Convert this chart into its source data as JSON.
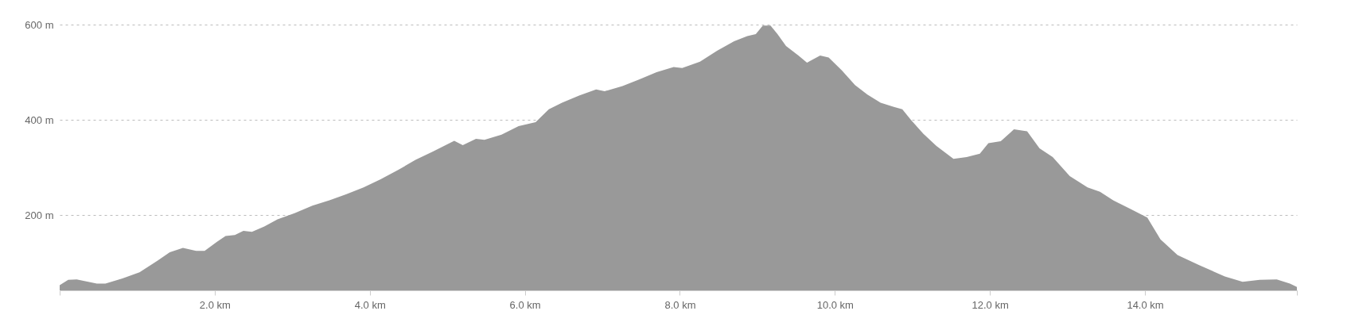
{
  "chart_data": {
    "type": "area",
    "relative": false,
    "x": [
      0,
      0.11,
      0.22,
      0.48,
      0.59,
      0.81,
      1.03,
      1.26,
      1.42,
      1.59,
      1.76,
      1.87,
      2.03,
      2.14,
      2.26,
      2.37,
      2.48,
      2.64,
      2.81,
      3.03,
      3.26,
      3.48,
      3.7,
      3.92,
      4.14,
      4.37,
      4.59,
      4.81,
      5.09,
      5.2,
      5.37,
      5.48,
      5.7,
      5.92,
      6.14,
      6.31,
      6.48,
      6.7,
      6.92,
      7.03,
      7.26,
      7.48,
      7.7,
      7.92,
      8.03,
      8.26,
      8.48,
      8.7,
      8.87,
      8.98,
      9.07,
      9.17,
      9.26,
      9.37,
      9.53,
      9.64,
      9.81,
      9.92,
      10.09,
      10.26,
      10.42,
      10.59,
      10.76,
      10.87,
      10.98,
      11.14,
      11.31,
      11.53,
      11.7,
      11.87,
      11.98,
      12.14,
      12.31,
      12.48,
      12.64,
      12.81,
      13.03,
      13.26,
      13.42,
      13.59,
      13.81,
      14.03,
      14.2,
      14.42,
      14.7,
      15.03,
      15.26,
      15.48,
      15.7,
      15.87,
      15.96
    ],
    "series": [
      {
        "color": "#999999",
        "values": [
          53,
          64,
          65,
          56,
          56,
          67,
          80,
          104,
          122,
          131,
          125,
          125,
          144,
          156,
          158,
          167,
          165,
          176,
          191,
          204,
          220,
          231,
          244,
          258,
          275,
          295,
          316,
          333,
          356,
          347,
          360,
          358,
          369,
          387,
          395,
          422,
          436,
          451,
          464,
          460,
          471,
          485,
          500,
          511,
          509,
          522,
          545,
          565,
          576,
          580,
          598,
          598,
          580,
          555,
          535,
          520,
          535,
          531,
          504,
          473,
          453,
          436,
          427,
          422,
          400,
          371,
          345,
          318,
          322,
          329,
          351,
          355,
          380,
          376,
          340,
          322,
          282,
          258,
          249,
          231,
          213,
          195,
          149,
          116,
          95,
          71,
          60,
          64,
          65,
          56,
          49
        ]
      }
    ],
    "xlim": [
      0,
      15.96
    ],
    "ylim": [
      42,
      600
    ],
    "xticks": [
      {
        "value": 0,
        "label": null
      },
      {
        "value": 2,
        "label": "2.0 km"
      },
      {
        "value": 4,
        "label": "4.0 km"
      },
      {
        "value": 6,
        "label": "6.0 km"
      },
      {
        "value": 8,
        "label": "8.0 km"
      },
      {
        "value": 10,
        "label": "10.0 km"
      },
      {
        "value": 12,
        "label": "12.0 km"
      },
      {
        "value": 14,
        "label": "14.0 km"
      },
      {
        "value": 15.96,
        "label": null
      }
    ],
    "yticks": [
      {
        "value": 200,
        "label": "200 m"
      },
      {
        "value": 400,
        "label": "400 m"
      },
      {
        "value": 600,
        "label": "600 m"
      }
    ],
    "grid": "y"
  }
}
